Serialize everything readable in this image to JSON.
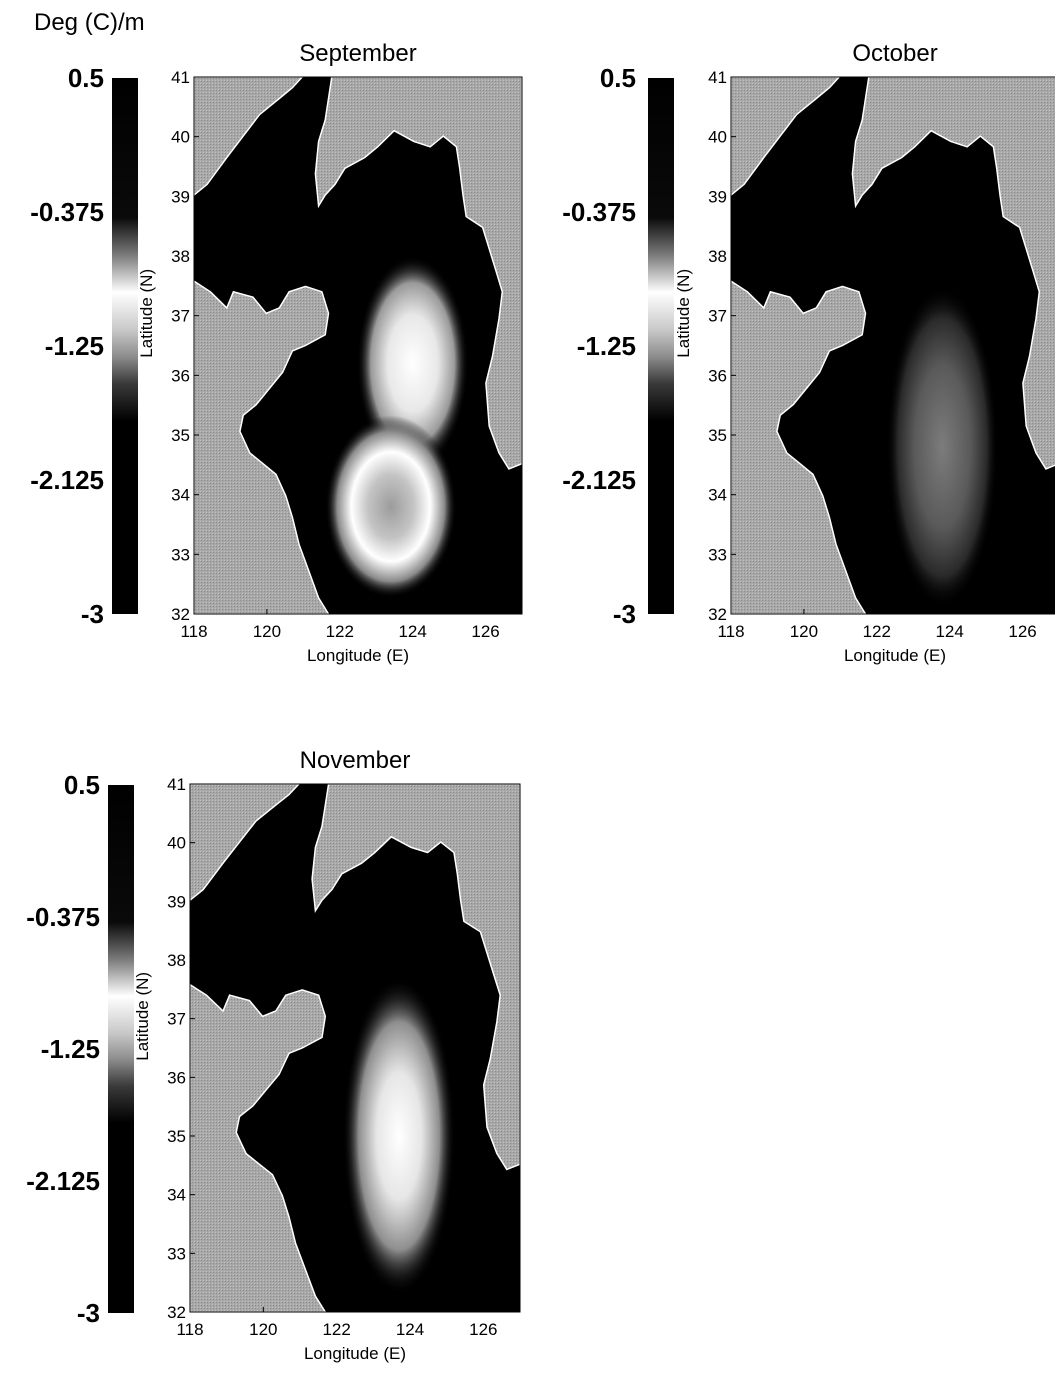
{
  "figure": {
    "unit_label": "Deg (C)/m"
  },
  "colorbar": {
    "ticks": [
      "0.5",
      "-0.375",
      "-1.25",
      "-2.125",
      "-3"
    ],
    "range": [
      -3,
      0.5
    ]
  },
  "chart_data": [
    {
      "type": "heatmap",
      "title": "September",
      "xlabel": "Longitude (E)",
      "ylabel": "Latitude (N)",
      "xlim": [
        118,
        127
      ],
      "ylim": [
        32,
        41
      ],
      "xticks": [
        "118",
        "120",
        "122",
        "124",
        "126"
      ],
      "yticks": [
        "32",
        "33",
        "34",
        "35",
        "36",
        "37",
        "38",
        "39",
        "40",
        "41"
      ],
      "features": [
        {
          "kind": "gradient-core",
          "lon": 124.0,
          "lat": 36.2,
          "value": -1.0
        },
        {
          "kind": "gradient-core",
          "lon": 123.4,
          "lat": 33.8,
          "value": -1.5
        }
      ]
    },
    {
      "type": "heatmap",
      "title": "October",
      "xlabel": "Longitude (E)",
      "ylabel": "Latitude (N)",
      "xlim": [
        118,
        127
      ],
      "ylim": [
        32,
        41
      ],
      "xticks": [
        "118",
        "120",
        "122",
        "124",
        "126"
      ],
      "yticks": [
        "32",
        "33",
        "34",
        "35",
        "36",
        "37",
        "38",
        "39",
        "40",
        "41"
      ],
      "features": [
        {
          "kind": "gradient-core",
          "lon": 123.8,
          "lat": 34.8,
          "value": -2.0
        }
      ]
    },
    {
      "type": "heatmap",
      "title": "November",
      "xlabel": "Longitude (E)",
      "ylabel": "Latitude (N)",
      "xlim": [
        118,
        127
      ],
      "ylim": [
        32,
        41
      ],
      "xticks": [
        "118",
        "120",
        "122",
        "124",
        "126"
      ],
      "yticks": [
        "32",
        "33",
        "34",
        "35",
        "36",
        "37",
        "38",
        "39",
        "40",
        "41"
      ],
      "features": [
        {
          "kind": "gradient-core",
          "lon": 123.7,
          "lat": 35.0,
          "value": -1.3
        }
      ]
    }
  ]
}
